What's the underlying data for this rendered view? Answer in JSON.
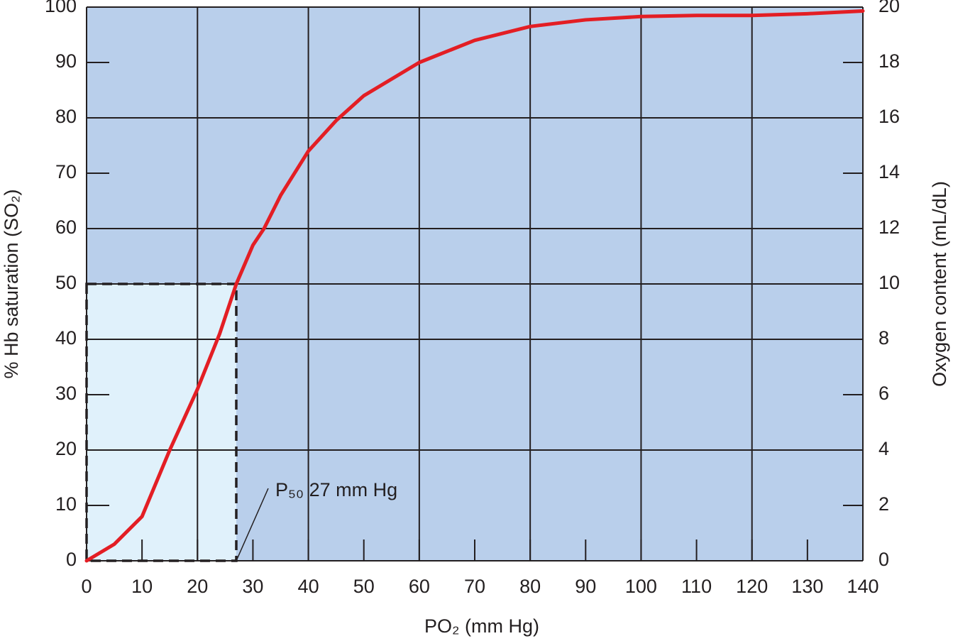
{
  "chart_data": {
    "type": "line",
    "x_label": "PO₂ (mm Hg)",
    "y_label": "% Hb saturation (SO₂)",
    "y2_label": "Oxygen content (mL/dL)",
    "xlim": [
      0,
      140
    ],
    "xticks": [
      0,
      10,
      20,
      30,
      40,
      50,
      60,
      70,
      80,
      90,
      100,
      110,
      120,
      130,
      140
    ],
    "xgrid": [
      0,
      20,
      40,
      60,
      80,
      100,
      120,
      140
    ],
    "ylim": [
      0,
      100
    ],
    "yticks": [
      0,
      10,
      20,
      30,
      40,
      50,
      60,
      70,
      80,
      90,
      100
    ],
    "ygrid": [
      0,
      20,
      40,
      50,
      60,
      80,
      100
    ],
    "y2lim": [
      0,
      20
    ],
    "y2ticks": [
      0,
      2,
      4,
      6,
      8,
      10,
      12,
      14,
      16,
      18,
      20
    ],
    "background": "#b9cfeb",
    "x": [
      0,
      5,
      10,
      15,
      20,
      24,
      27,
      30,
      32,
      35,
      40,
      45,
      50,
      60,
      70,
      80,
      90,
      100,
      110,
      120,
      130,
      140
    ],
    "series": [
      {
        "name": "SO₂",
        "color": "#e31e24",
        "values": [
          0,
          3,
          8,
          20,
          31,
          41,
          50,
          57,
          60,
          66,
          74,
          79.5,
          84,
          90,
          94,
          96.5,
          97.7,
          98.3,
          98.5,
          98.5,
          98.8,
          99.3
        ]
      }
    ],
    "annotation": {
      "text": "P₅₀ 27 mm Hg",
      "x": 27,
      "y": 50,
      "color": "#e0f1fb"
    }
  }
}
